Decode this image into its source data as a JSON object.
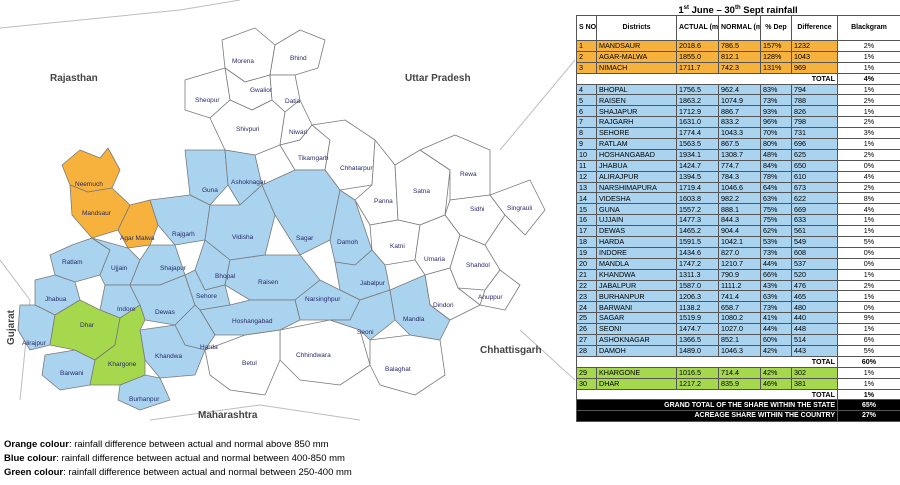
{
  "map": {
    "states": {
      "rajasthan": "Rajasthan",
      "uttar_pradesh": "Uttar Pradesh",
      "gujarat": "Gujarat",
      "chhattisgarh": "Chhattisgarh",
      "maharashtra": "Maharashtra"
    },
    "colors": {
      "orange": "#f6b23c",
      "blue": "#a9d3ee",
      "green": "#a6d84e",
      "white": "#ffffff",
      "border": "#7a7a7a"
    },
    "districts": [
      {
        "name": "Morena",
        "category": "none"
      },
      {
        "name": "Bhind",
        "category": "none"
      },
      {
        "name": "Gwalior",
        "category": "none"
      },
      {
        "name": "Datia",
        "category": "none"
      },
      {
        "name": "Sheopur",
        "category": "none"
      },
      {
        "name": "Shivpuri",
        "category": "none"
      },
      {
        "name": "Niwari",
        "category": "none"
      },
      {
        "name": "Tikamgarh",
        "category": "none"
      },
      {
        "name": "Chhatarpur",
        "category": "none"
      },
      {
        "name": "Panna",
        "category": "none"
      },
      {
        "name": "Satna",
        "category": "none"
      },
      {
        "name": "Rewa",
        "category": "none"
      },
      {
        "name": "Sidhi",
        "category": "none"
      },
      {
        "name": "Singrauli",
        "category": "none"
      },
      {
        "name": "Katni",
        "category": "none"
      },
      {
        "name": "Umaria",
        "category": "none"
      },
      {
        "name": "Shahdol",
        "category": "none"
      },
      {
        "name": "Anuppur",
        "category": "none"
      },
      {
        "name": "Dindori",
        "category": "none"
      },
      {
        "name": "Chhindwara",
        "category": "none"
      },
      {
        "name": "Betul",
        "category": "none"
      },
      {
        "name": "Balaghat",
        "category": "none"
      },
      {
        "name": "Neemuch",
        "category": "orange"
      },
      {
        "name": "Mandsaur",
        "category": "orange"
      },
      {
        "name": "Agar Malwa",
        "category": "orange"
      },
      {
        "name": "Guna",
        "category": "blue"
      },
      {
        "name": "Ashoknagar",
        "category": "blue"
      },
      {
        "name": "Rajgarh",
        "category": "blue"
      },
      {
        "name": "Vidisha",
        "category": "blue"
      },
      {
        "name": "Sagar",
        "category": "blue"
      },
      {
        "name": "Damoh",
        "category": "blue"
      },
      {
        "name": "Ratlam",
        "category": "blue"
      },
      {
        "name": "Ujjain",
        "category": "blue"
      },
      {
        "name": "Shajapur",
        "category": "blue"
      },
      {
        "name": "Bhopal",
        "category": "blue"
      },
      {
        "name": "Raisen",
        "category": "blue"
      },
      {
        "name": "Jabalpur",
        "category": "blue"
      },
      {
        "name": "Jhabua",
        "category": "blue"
      },
      {
        "name": "Indore",
        "category": "blue"
      },
      {
        "name": "Dewas",
        "category": "blue"
      },
      {
        "name": "Sehore",
        "category": "blue"
      },
      {
        "name": "Narsinghpur",
        "category": "blue"
      },
      {
        "name": "Alirajpur",
        "category": "blue"
      },
      {
        "name": "Hoshangabad",
        "category": "blue"
      },
      {
        "name": "Harda",
        "category": "blue"
      },
      {
        "name": "Seoni",
        "category": "blue"
      },
      {
        "name": "Mandla",
        "category": "blue"
      },
      {
        "name": "Barwani",
        "category": "blue"
      },
      {
        "name": "Khandwa",
        "category": "blue"
      },
      {
        "name": "Burhanpur",
        "category": "blue"
      },
      {
        "name": "Dhar",
        "category": "green"
      },
      {
        "name": "Khargone",
        "category": "green"
      }
    ]
  },
  "legend": [
    {
      "color_word": "Orange colour",
      "text": ": rainfall difference between actual and normal above 850 mm"
    },
    {
      "color_word": "Blue colour",
      "text": ": rainfall difference between actual and normal between 400-850 mm"
    },
    {
      "color_word": "Green colour",
      "text": ": rainfall difference between actual and normal between 250-400 mm"
    }
  ],
  "table": {
    "title_pre": "1",
    "title_sup1": "st",
    "title_mid": " June – 30",
    "title_sup2": "th",
    "title_post": " Sept rainfall",
    "headers": {
      "sno": "S NO",
      "districts": "Districts",
      "actual": "ACTUAL (mm)",
      "normal": "NORMAL (mm)",
      "dep": "% Dep",
      "difference": "Difference",
      "blackgram": "Blackgram"
    },
    "groups": [
      {
        "category": "orange",
        "rows": [
          {
            "sno": "1",
            "district": "MANDSAUR",
            "actual": "2018.6",
            "normal": "786.5",
            "dep": "157%",
            "diff": "1232",
            "share": "2%"
          },
          {
            "sno": "2",
            "district": "AGAR-MALWA",
            "actual": "1855.0",
            "normal": "812.1",
            "dep": "128%",
            "diff": "1043",
            "share": "1%"
          },
          {
            "sno": "3",
            "district": "NIMACH",
            "actual": "1711.7",
            "normal": "742.3",
            "dep": "131%",
            "diff": "969",
            "share": "1%"
          }
        ],
        "total_label": "TOTAL",
        "total_value": "4%"
      },
      {
        "category": "blue",
        "rows": [
          {
            "sno": "4",
            "district": "BHOPAL",
            "actual": "1756.5",
            "normal": "962.4",
            "dep": "83%",
            "diff": "794",
            "share": "1%"
          },
          {
            "sno": "5",
            "district": "RAISEN",
            "actual": "1863.2",
            "normal": "1074.9",
            "dep": "73%",
            "diff": "788",
            "share": "2%"
          },
          {
            "sno": "6",
            "district": "SHAJAPUR",
            "actual": "1712.9",
            "normal": "886.7",
            "dep": "93%",
            "diff": "826",
            "share": "1%"
          },
          {
            "sno": "7",
            "district": "RAJGARH",
            "actual": "1631.0",
            "normal": "833.2",
            "dep": "96%",
            "diff": "798",
            "share": "2%"
          },
          {
            "sno": "8",
            "district": "SEHORE",
            "actual": "1774.4",
            "normal": "1043.3",
            "dep": "70%",
            "diff": "731",
            "share": "3%"
          },
          {
            "sno": "9",
            "district": "RATLAM",
            "actual": "1563.5",
            "normal": "867.5",
            "dep": "80%",
            "diff": "696",
            "share": "1%"
          },
          {
            "sno": "10",
            "district": "HOSHANGABAD",
            "actual": "1934.1",
            "normal": "1308.7",
            "dep": "48%",
            "diff": "625",
            "share": "2%"
          },
          {
            "sno": "11",
            "district": "JHABUA",
            "actual": "1424.7",
            "normal": "774.7",
            "dep": "84%",
            "diff": "650",
            "share": "0%"
          },
          {
            "sno": "12",
            "district": "ALIRAJPUR",
            "actual": "1394.5",
            "normal": "784.3",
            "dep": "78%",
            "diff": "610",
            "share": "4%"
          },
          {
            "sno": "13",
            "district": "NARSHIMAPURA",
            "actual": "1719.4",
            "normal": "1046.6",
            "dep": "64%",
            "diff": "673",
            "share": "2%"
          },
          {
            "sno": "14",
            "district": "VIDESHA",
            "actual": "1603.8",
            "normal": "982.2",
            "dep": "63%",
            "diff": "622",
            "share": "8%"
          },
          {
            "sno": "15",
            "district": "GUNA",
            "actual": "1557.2",
            "normal": "888.1",
            "dep": "75%",
            "diff": "669",
            "share": "4%"
          },
          {
            "sno": "16",
            "district": "UJJAIN",
            "actual": "1477.3",
            "normal": "844.3",
            "dep": "75%",
            "diff": "633",
            "share": "1%"
          },
          {
            "sno": "17",
            "district": "DEWAS",
            "actual": "1465.2",
            "normal": "904.4",
            "dep": "62%",
            "diff": "561",
            "share": "1%"
          },
          {
            "sno": "18",
            "district": "HARDA",
            "actual": "1591.5",
            "normal": "1042.1",
            "dep": "53%",
            "diff": "549",
            "share": "5%"
          },
          {
            "sno": "19",
            "district": "INDORE",
            "actual": "1434.6",
            "normal": "827.0",
            "dep": "73%",
            "diff": "608",
            "share": "0%"
          },
          {
            "sno": "20",
            "district": "MANDLA",
            "actual": "1747.2",
            "normal": "1210.7",
            "dep": "44%",
            "diff": "537",
            "share": "0%"
          },
          {
            "sno": "21",
            "district": "KHANDWA",
            "actual": "1311.3",
            "normal": "790.9",
            "dep": "66%",
            "diff": "520",
            "share": "1%"
          },
          {
            "sno": "22",
            "district": "JABALPUR",
            "actual": "1587.0",
            "normal": "1111.2",
            "dep": "43%",
            "diff": "476",
            "share": "2%"
          },
          {
            "sno": "23",
            "district": "BURHANPUR",
            "actual": "1206.3",
            "normal": "741.4",
            "dep": "63%",
            "diff": "465",
            "share": "1%"
          },
          {
            "sno": "24",
            "district": "BARWANI",
            "actual": "1138.2",
            "normal": "658.7",
            "dep": "73%",
            "diff": "480",
            "share": "0%"
          },
          {
            "sno": "25",
            "district": "SAGAR",
            "actual": "1519.9",
            "normal": "1080.2",
            "dep": "41%",
            "diff": "440",
            "share": "9%"
          },
          {
            "sno": "26",
            "district": "SEONI",
            "actual": "1474.7",
            "normal": "1027.0",
            "dep": "44%",
            "diff": "448",
            "share": "1%"
          },
          {
            "sno": "27",
            "district": "ASHOKNAGAR",
            "actual": "1366.5",
            "normal": "852.1",
            "dep": "60%",
            "diff": "514",
            "share": "6%"
          },
          {
            "sno": "28",
            "district": "DAMOH",
            "actual": "1489.0",
            "normal": "1046.3",
            "dep": "42%",
            "diff": "443",
            "share": "5%"
          }
        ],
        "total_label": "TOTAL",
        "total_value": "60%"
      },
      {
        "category": "green",
        "rows": [
          {
            "sno": "29",
            "district": "KHARGONE",
            "actual": "1016.5",
            "normal": "714.4",
            "dep": "42%",
            "diff": "302",
            "share": "1%"
          },
          {
            "sno": "30",
            "district": "DHAR",
            "actual": "1217.2",
            "normal": "835.9",
            "dep": "46%",
            "diff": "381",
            "share": "1%"
          }
        ],
        "total_label": "TOTAL",
        "total_value": "1%"
      }
    ],
    "grand_rows": [
      {
        "label": "GRAND TOTAL OF THE SHARE WITHIN THE STATE",
        "value": "65%"
      },
      {
        "label": "ACREAGE SHARE WITHIN THE COUNTRY",
        "value": "27%"
      }
    ]
  }
}
